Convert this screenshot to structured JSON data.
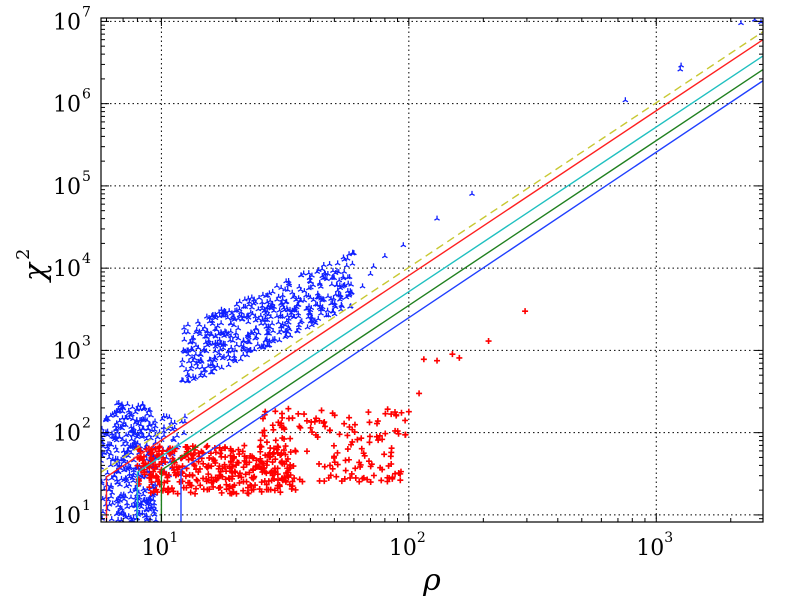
{
  "chart_data": {
    "type": "scatter",
    "xscale": "log",
    "yscale": "log",
    "xlim": [
      5.7,
      2700
    ],
    "ylim": [
      8.2,
      11000000
    ],
    "grid": true,
    "grid_style": "dotted",
    "title": "",
    "xlabel": "ρ",
    "ylabel_base": "χ",
    "ylabel_exp": "2",
    "x_ticks": [
      {
        "value": 10,
        "base": "10",
        "exp": "1"
      },
      {
        "value": 100,
        "base": "10",
        "exp": "2"
      },
      {
        "value": 1000,
        "base": "10",
        "exp": "3"
      }
    ],
    "y_ticks": [
      {
        "value": 10,
        "base": "10",
        "exp": "1"
      },
      {
        "value": 100,
        "base": "10",
        "exp": "2"
      },
      {
        "value": 1000,
        "base": "10",
        "exp": "3"
      },
      {
        "value": 10000,
        "base": "10",
        "exp": "4"
      },
      {
        "value": 100000,
        "base": "10",
        "exp": "5"
      },
      {
        "value": 1000000,
        "base": "10",
        "exp": "6"
      },
      {
        "value": 10000000,
        "base": "10",
        "exp": "7"
      }
    ],
    "lines": [
      {
        "color": "#c8c832",
        "style": "dashed",
        "x0": 5.7,
        "x_start_vertical": false,
        "points": [
          [
            5.7,
            33
          ],
          [
            2700,
            7500000
          ]
        ]
      },
      {
        "color": "#ff2020",
        "style": "solid",
        "x_start": 6.0,
        "y_start": 8.2,
        "points": [
          [
            6.0,
            29
          ],
          [
            2700,
            6000000
          ]
        ]
      },
      {
        "color": "#20c0c0",
        "style": "solid",
        "x_start": 8.0,
        "y_start": 8.2,
        "points": [
          [
            8.0,
            33
          ],
          [
            2700,
            3800000
          ]
        ]
      },
      {
        "color": "#208020",
        "style": "solid",
        "x_start": 10.0,
        "y_start": 8.2,
        "points": [
          [
            10.0,
            35
          ],
          [
            2700,
            2600000
          ]
        ]
      },
      {
        "color": "#2040ff",
        "style": "solid",
        "x_start": 12.0,
        "y_start": 8.2,
        "points": [
          [
            12.0,
            35
          ],
          [
            2700,
            1900000
          ]
        ]
      }
    ],
    "series": [
      {
        "marker": "tri_down",
        "color": "#1020ff",
        "clusters": [
          {
            "x_range": [
              5.7,
              9.5
            ],
            "y_range": [
              8.5,
              230
            ],
            "count": 380
          },
          {
            "x_range": [
              9.5,
              12.5
            ],
            "y_range": [
              30,
              160
            ],
            "count": 40
          },
          {
            "x_range": [
              12,
              60
            ],
            "y_range_low_at_min": [
              350,
              1900
            ],
            "y_range_high_at_max": [
              3500,
              16000
            ],
            "count": 520
          }
        ],
        "points": [
          [
            65,
            6000
          ],
          [
            70,
            8500
          ],
          [
            72,
            10500
          ],
          [
            80,
            14000
          ],
          [
            95,
            19000
          ],
          [
            130,
            40000
          ],
          [
            180,
            80000
          ],
          [
            750,
            1100000
          ],
          [
            1250,
            2600000
          ],
          [
            1260,
            2900000
          ],
          [
            2200,
            9500000
          ],
          [
            2500,
            10500000
          ],
          [
            2650,
            9800000
          ]
        ]
      },
      {
        "marker": "plus",
        "color": "#ff0000",
        "clusters": [
          {
            "x_range": [
              8,
              35
            ],
            "y_range": [
              18,
              70
            ],
            "count": 380
          },
          {
            "x_range": [
              25,
              100
            ],
            "y_range": [
              25,
              200
            ],
            "count": 160
          }
        ],
        "points": [
          [
            115,
            780
          ],
          [
            130,
            750
          ],
          [
            150,
            900
          ],
          [
            160,
            810
          ],
          [
            210,
            1300
          ],
          [
            295,
            3000
          ],
          [
            110,
            300
          ],
          [
            100,
            180
          ]
        ]
      }
    ]
  }
}
